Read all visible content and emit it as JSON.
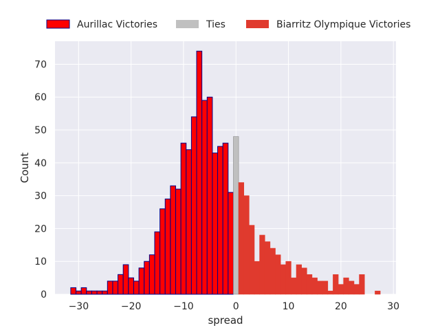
{
  "chart_data": {
    "type": "bar",
    "xlabel": "spread",
    "ylabel": "Count",
    "xlim": [
      -34.5,
      30.5
    ],
    "ylim": [
      0,
      77
    ],
    "x_ticks": [
      -30,
      -20,
      -10,
      0,
      10,
      20,
      30
    ],
    "x_tick_labels": [
      "−30",
      "−20",
      "−10",
      "0",
      "10",
      "20",
      "30"
    ],
    "y_ticks": [
      0,
      10,
      20,
      30,
      40,
      50,
      60,
      70
    ],
    "y_tick_labels": [
      "0",
      "10",
      "20",
      "30",
      "40",
      "50",
      "60",
      "70"
    ],
    "grid": true,
    "legend_position": "top, above plot",
    "background": "#eaeaf2",
    "grid_color": "#ffffff",
    "series": [
      {
        "name": "Aurillac Victories",
        "color": "#ff0000",
        "edge_color": "#00008b",
        "x": [
          -31,
          -30,
          -29,
          -28,
          -27,
          -26,
          -25,
          -24,
          -23,
          -22,
          -21,
          -20,
          -19,
          -18,
          -17,
          -16,
          -15,
          -14,
          -13,
          -12,
          -11,
          -10,
          -9,
          -8,
          -7,
          -6,
          -5,
          -4,
          -3,
          -2,
          -1
        ],
        "values": [
          2,
          1,
          2,
          1,
          1,
          1,
          1,
          4,
          4,
          6,
          9,
          5,
          4,
          8,
          10,
          12,
          19,
          26,
          29,
          33,
          32,
          46,
          44,
          54,
          74,
          59,
          60,
          43,
          45,
          46,
          31
        ]
      },
      {
        "name": "Ties",
        "color": "#c0c0c0",
        "edge_color": "#8c8c8c",
        "x": [
          0
        ],
        "values": [
          48
        ]
      },
      {
        "name": "Biarritz Olympique Victories",
        "color": "#e03a2e",
        "edge_color": "#e03a2e",
        "x": [
          1,
          2,
          3,
          4,
          5,
          6,
          7,
          8,
          9,
          10,
          11,
          12,
          13,
          14,
          15,
          16,
          17,
          18,
          19,
          20,
          21,
          22,
          23,
          24,
          25,
          26,
          27
        ],
        "values": [
          34,
          30,
          21,
          10,
          18,
          16,
          14,
          12,
          9,
          10,
          5,
          9,
          8,
          6,
          5,
          4,
          4,
          1,
          6,
          3,
          5,
          4,
          3,
          6,
          0,
          0,
          1
        ]
      }
    ]
  }
}
